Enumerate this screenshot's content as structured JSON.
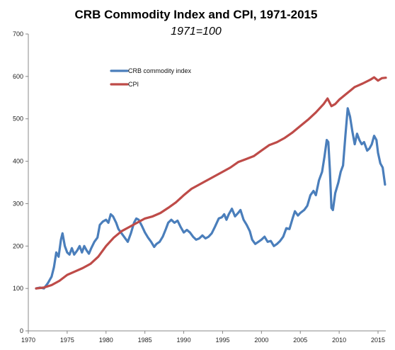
{
  "chart_data": {
    "type": "line",
    "title": "CRB Commodity Index and CPI, 1971-2015",
    "subtitle": "1971=100",
    "xlabel": "",
    "ylabel": "",
    "xlim": [
      1970,
      2016
    ],
    "ylim": [
      0,
      700
    ],
    "x_ticks": [
      1970,
      1975,
      1980,
      1985,
      1990,
      1995,
      2000,
      2005,
      2010,
      2015
    ],
    "y_ticks": [
      0,
      100,
      200,
      300,
      400,
      500,
      600,
      700
    ],
    "grid": false,
    "legend_position": "top-left",
    "series": [
      {
        "name": "CRB commodity index",
        "color": "#4a7ebb",
        "points": [
          [
            1971.0,
            100
          ],
          [
            1971.5,
            102
          ],
          [
            1972.0,
            100
          ],
          [
            1972.5,
            112
          ],
          [
            1973.0,
            128
          ],
          [
            1973.3,
            150
          ],
          [
            1973.6,
            185
          ],
          [
            1973.9,
            175
          ],
          [
            1974.2,
            215
          ],
          [
            1974.4,
            230
          ],
          [
            1974.7,
            200
          ],
          [
            1975.0,
            185
          ],
          [
            1975.3,
            180
          ],
          [
            1975.6,
            195
          ],
          [
            1975.9,
            180
          ],
          [
            1976.3,
            190
          ],
          [
            1976.6,
            200
          ],
          [
            1976.9,
            185
          ],
          [
            1977.2,
            200
          ],
          [
            1977.5,
            190
          ],
          [
            1977.8,
            182
          ],
          [
            1978.1,
            195
          ],
          [
            1978.5,
            210
          ],
          [
            1978.9,
            220
          ],
          [
            1979.2,
            250
          ],
          [
            1979.6,
            258
          ],
          [
            1980.0,
            262
          ],
          [
            1980.3,
            255
          ],
          [
            1980.6,
            275
          ],
          [
            1980.9,
            270
          ],
          [
            1981.3,
            255
          ],
          [
            1981.6,
            240
          ],
          [
            1982.0,
            230
          ],
          [
            1982.4,
            220
          ],
          [
            1982.8,
            210
          ],
          [
            1983.2,
            230
          ],
          [
            1983.6,
            255
          ],
          [
            1983.9,
            265
          ],
          [
            1984.2,
            262
          ],
          [
            1984.6,
            248
          ],
          [
            1985.0,
            232
          ],
          [
            1985.4,
            220
          ],
          [
            1985.8,
            210
          ],
          [
            1986.2,
            198
          ],
          [
            1986.5,
            205
          ],
          [
            1986.9,
            210
          ],
          [
            1987.3,
            222
          ],
          [
            1987.7,
            240
          ],
          [
            1988.0,
            255
          ],
          [
            1988.4,
            262
          ],
          [
            1988.8,
            255
          ],
          [
            1989.2,
            260
          ],
          [
            1989.6,
            245
          ],
          [
            1990.0,
            232
          ],
          [
            1990.4,
            238
          ],
          [
            1990.8,
            232
          ],
          [
            1991.2,
            222
          ],
          [
            1991.6,
            215
          ],
          [
            1992.0,
            218
          ],
          [
            1992.4,
            225
          ],
          [
            1992.8,
            218
          ],
          [
            1993.2,
            222
          ],
          [
            1993.6,
            230
          ],
          [
            1994.0,
            245
          ],
          [
            1994.5,
            265
          ],
          [
            1994.9,
            268
          ],
          [
            1995.2,
            275
          ],
          [
            1995.5,
            262
          ],
          [
            1995.8,
            275
          ],
          [
            1996.2,
            288
          ],
          [
            1996.6,
            270
          ],
          [
            1997.0,
            278
          ],
          [
            1997.3,
            285
          ],
          [
            1997.7,
            262
          ],
          [
            1998.1,
            250
          ],
          [
            1998.5,
            235
          ],
          [
            1998.8,
            215
          ],
          [
            1999.2,
            205
          ],
          [
            1999.6,
            210
          ],
          [
            2000.0,
            215
          ],
          [
            2000.4,
            222
          ],
          [
            2000.8,
            210
          ],
          [
            2001.2,
            212
          ],
          [
            2001.6,
            200
          ],
          [
            2002.0,
            205
          ],
          [
            2002.4,
            212
          ],
          [
            2002.8,
            222
          ],
          [
            2003.2,
            242
          ],
          [
            2003.6,
            240
          ],
          [
            2004.0,
            265
          ],
          [
            2004.3,
            282
          ],
          [
            2004.7,
            272
          ],
          [
            2005.0,
            278
          ],
          [
            2005.5,
            285
          ],
          [
            2005.9,
            295
          ],
          [
            2006.3,
            320
          ],
          [
            2006.7,
            330
          ],
          [
            2007.0,
            320
          ],
          [
            2007.4,
            355
          ],
          [
            2007.8,
            375
          ],
          [
            2008.1,
            410
          ],
          [
            2008.4,
            450
          ],
          [
            2008.6,
            445
          ],
          [
            2008.8,
            380
          ],
          [
            2009.0,
            290
          ],
          [
            2009.2,
            285
          ],
          [
            2009.5,
            325
          ],
          [
            2009.9,
            350
          ],
          [
            2010.2,
            375
          ],
          [
            2010.5,
            390
          ],
          [
            2010.8,
            460
          ],
          [
            2011.1,
            525
          ],
          [
            2011.4,
            505
          ],
          [
            2011.7,
            470
          ],
          [
            2012.0,
            440
          ],
          [
            2012.3,
            465
          ],
          [
            2012.6,
            450
          ],
          [
            2012.9,
            440
          ],
          [
            2013.2,
            445
          ],
          [
            2013.6,
            425
          ],
          [
            2013.9,
            430
          ],
          [
            2014.2,
            440
          ],
          [
            2014.5,
            460
          ],
          [
            2014.8,
            450
          ],
          [
            2015.0,
            420
          ],
          [
            2015.3,
            395
          ],
          [
            2015.6,
            385
          ],
          [
            2015.9,
            345
          ]
        ]
      },
      {
        "name": "CPI",
        "color": "#be4b48",
        "points": [
          [
            1971.0,
            100
          ],
          [
            1972.0,
            102
          ],
          [
            1973.0,
            108
          ],
          [
            1974.0,
            118
          ],
          [
            1975.0,
            132
          ],
          [
            1976.0,
            140
          ],
          [
            1977.0,
            148
          ],
          [
            1978.0,
            158
          ],
          [
            1979.0,
            175
          ],
          [
            1980.0,
            200
          ],
          [
            1981.0,
            220
          ],
          [
            1982.0,
            235
          ],
          [
            1983.0,
            245
          ],
          [
            1984.0,
            255
          ],
          [
            1985.0,
            265
          ],
          [
            1986.0,
            270
          ],
          [
            1987.0,
            278
          ],
          [
            1988.0,
            290
          ],
          [
            1989.0,
            303
          ],
          [
            1990.0,
            320
          ],
          [
            1991.0,
            335
          ],
          [
            1992.0,
            345
          ],
          [
            1993.0,
            355
          ],
          [
            1994.0,
            365
          ],
          [
            1995.0,
            375
          ],
          [
            1996.0,
            385
          ],
          [
            1997.0,
            398
          ],
          [
            1998.0,
            405
          ],
          [
            1999.0,
            412
          ],
          [
            2000.0,
            425
          ],
          [
            2001.0,
            438
          ],
          [
            2002.0,
            445
          ],
          [
            2003.0,
            455
          ],
          [
            2004.0,
            468
          ],
          [
            2005.0,
            483
          ],
          [
            2006.0,
            498
          ],
          [
            2007.0,
            515
          ],
          [
            2008.0,
            535
          ],
          [
            2008.5,
            548
          ],
          [
            2009.0,
            530
          ],
          [
            2009.5,
            535
          ],
          [
            2010.0,
            545
          ],
          [
            2011.0,
            560
          ],
          [
            2012.0,
            575
          ],
          [
            2013.0,
            583
          ],
          [
            2014.0,
            592
          ],
          [
            2014.5,
            598
          ],
          [
            2015.0,
            590
          ],
          [
            2015.5,
            596
          ],
          [
            2016.0,
            597
          ]
        ]
      }
    ]
  }
}
